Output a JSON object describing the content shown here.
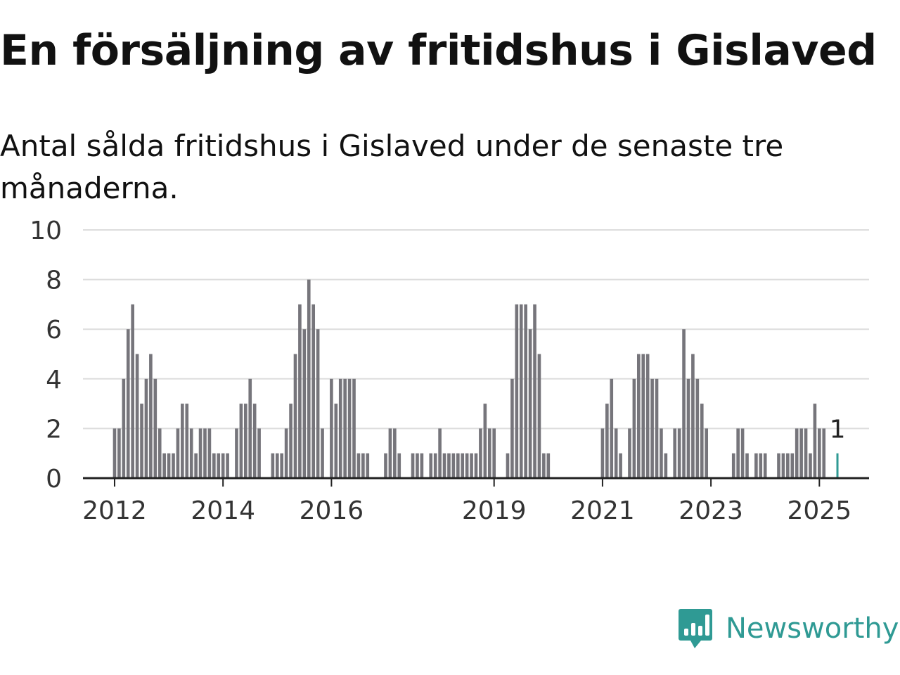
{
  "title": "En försäljning av fritidshus i Gislaved",
  "subtitle": "Antal sålda fritidshus i Gislaved under de senaste tre månaderna.",
  "brand": {
    "name": "Newsworthy",
    "icon": "newsworthy-logo-icon"
  },
  "colors": {
    "bars": "#76757b",
    "highlight": "#2f9a94",
    "grid": "#dddddd",
    "axis": "#222222"
  },
  "chart_data": {
    "type": "bar",
    "title": "En försäljning av fritidshus i Gislaved",
    "subtitle": "Antal sålda fritidshus i Gislaved under de senaste tre månaderna.",
    "xlabel": "",
    "ylabel": "",
    "ylim": [
      0,
      10
    ],
    "yticks": [
      0,
      2,
      4,
      6,
      8,
      10
    ],
    "grid": true,
    "xlim": [
      "2011-06",
      "2025-12"
    ],
    "xticks": [
      {
        "label": "2012",
        "x": "2012-01"
      },
      {
        "label": "2014",
        "x": "2014-01"
      },
      {
        "label": "2016",
        "x": "2016-01"
      },
      {
        "label": "2019",
        "x": "2019-01"
      },
      {
        "label": "2021",
        "x": "2021-01"
      },
      {
        "label": "2023",
        "x": "2023-01"
      },
      {
        "label": "2025",
        "x": "2025-01"
      }
    ],
    "x": [
      "2012-01",
      "2012-02",
      "2012-03",
      "2012-04",
      "2012-05",
      "2012-06",
      "2012-07",
      "2012-08",
      "2012-09",
      "2012-10",
      "2012-11",
      "2012-12",
      "2013-01",
      "2013-02",
      "2013-03",
      "2013-04",
      "2013-05",
      "2013-06",
      "2013-07",
      "2013-08",
      "2013-09",
      "2013-10",
      "2013-11",
      "2013-12",
      "2014-01",
      "2014-02",
      "2014-03",
      "2014-04",
      "2014-05",
      "2014-06",
      "2014-07",
      "2014-08",
      "2014-09",
      "2014-10",
      "2014-11",
      "2014-12",
      "2015-01",
      "2015-02",
      "2015-03",
      "2015-04",
      "2015-05",
      "2015-06",
      "2015-07",
      "2015-08",
      "2015-09",
      "2015-10",
      "2015-11",
      "2015-12",
      "2016-01",
      "2016-02",
      "2016-03",
      "2016-04",
      "2016-05",
      "2016-06",
      "2016-07",
      "2016-08",
      "2016-09",
      "2016-10",
      "2016-11",
      "2016-12",
      "2017-01",
      "2017-02",
      "2017-03",
      "2017-04",
      "2017-05",
      "2017-06",
      "2017-07",
      "2017-08",
      "2017-09",
      "2017-10",
      "2017-11",
      "2017-12",
      "2018-01",
      "2018-02",
      "2018-03",
      "2018-04",
      "2018-05",
      "2018-06",
      "2018-07",
      "2018-08",
      "2018-09",
      "2018-10",
      "2018-11",
      "2018-12",
      "2019-01",
      "2019-02",
      "2019-03",
      "2019-04",
      "2019-05",
      "2019-06",
      "2019-07",
      "2019-08",
      "2019-09",
      "2019-10",
      "2019-11",
      "2019-12",
      "2020-01",
      "2020-02",
      "2020-03",
      "2020-04",
      "2020-05",
      "2020-06",
      "2020-07",
      "2020-08",
      "2020-09",
      "2020-10",
      "2020-11",
      "2020-12",
      "2021-01",
      "2021-02",
      "2021-03",
      "2021-04",
      "2021-05",
      "2021-06",
      "2021-07",
      "2021-08",
      "2021-09",
      "2021-10",
      "2021-11",
      "2021-12",
      "2022-01",
      "2022-02",
      "2022-03",
      "2022-04",
      "2022-05",
      "2022-06",
      "2022-07",
      "2022-08",
      "2022-09",
      "2022-10",
      "2022-11",
      "2022-12",
      "2023-01",
      "2023-02",
      "2023-03",
      "2023-04",
      "2023-05",
      "2023-06",
      "2023-07",
      "2023-08",
      "2023-09",
      "2023-10",
      "2023-11",
      "2023-12",
      "2024-01",
      "2024-02",
      "2024-03",
      "2024-04",
      "2024-05",
      "2024-06",
      "2024-07",
      "2024-08",
      "2024-09",
      "2024-10",
      "2024-11",
      "2024-12",
      "2025-01",
      "2025-02",
      "2025-03",
      "2025-04",
      "2025-05"
    ],
    "series": [
      {
        "values": [
          2,
          2,
          4,
          6,
          7,
          5,
          3,
          4,
          5,
          4,
          2,
          1,
          1,
          1,
          2,
          3,
          3,
          2,
          1,
          2,
          2,
          2,
          1,
          1,
          1,
          1,
          0,
          2,
          3,
          3,
          4,
          3,
          2,
          0,
          0,
          1,
          1,
          1,
          2,
          3,
          5,
          7,
          6,
          8,
          7,
          6,
          2,
          0,
          4,
          3,
          4,
          4,
          4,
          4,
          1,
          1,
          1,
          0,
          0,
          0,
          1,
          2,
          2,
          1,
          0,
          0,
          1,
          1,
          1,
          0,
          1,
          1,
          2,
          1,
          1,
          1,
          1,
          1,
          1,
          1,
          1,
          2,
          3,
          2,
          2,
          0,
          0,
          1,
          4,
          7,
          7,
          7,
          6,
          7,
          5,
          1,
          1,
          0,
          0,
          0,
          0,
          0,
          0,
          0,
          0,
          0,
          0,
          0,
          2,
          3,
          4,
          2,
          1,
          0,
          2,
          4,
          5,
          5,
          5,
          4,
          4,
          2,
          1,
          0,
          2,
          2,
          6,
          4,
          5,
          4,
          3,
          2,
          0,
          0,
          0,
          0,
          0,
          1,
          2,
          2,
          1,
          0,
          1,
          1,
          1,
          0,
          0,
          1,
          1,
          1,
          1,
          2,
          2,
          2,
          1,
          3,
          2,
          2,
          0,
          0,
          1
        ]
      }
    ],
    "highlight": {
      "x": "2025-05",
      "value": 1,
      "label": "1"
    }
  }
}
